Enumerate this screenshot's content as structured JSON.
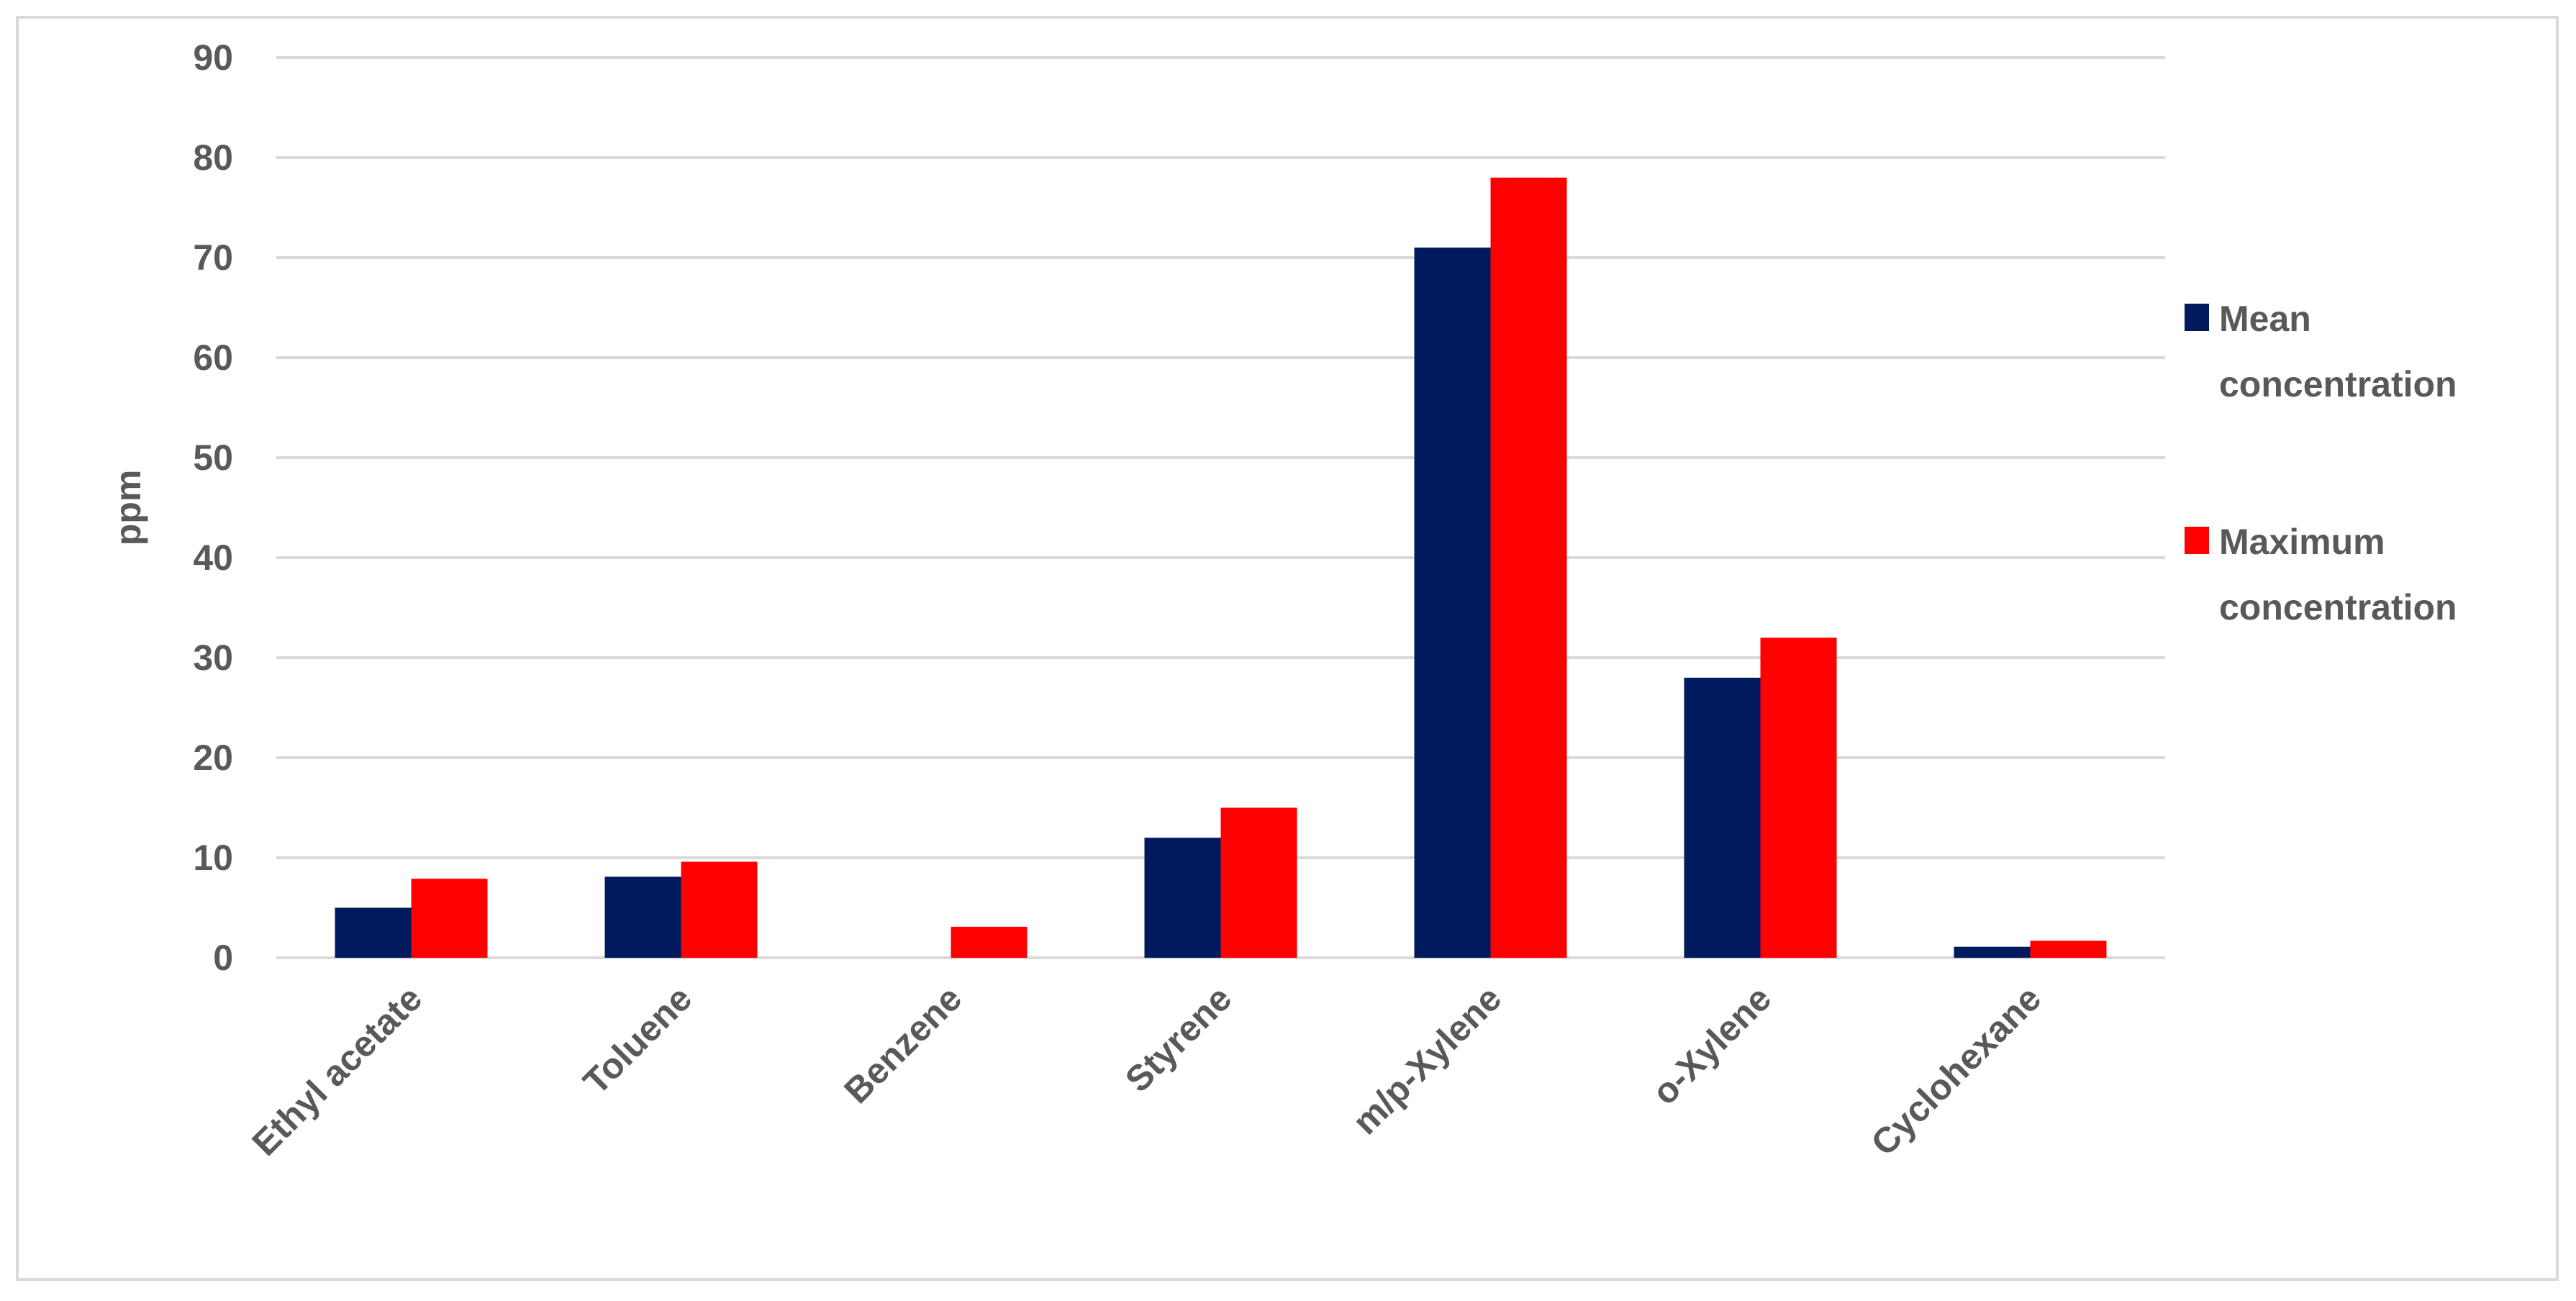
{
  "chart_data": {
    "type": "bar",
    "title": "",
    "xlabel": "",
    "ylabel": "ppm",
    "ylim": [
      0,
      90
    ],
    "yticks": [
      0,
      10,
      20,
      30,
      40,
      50,
      60,
      70,
      80,
      90
    ],
    "grid": true,
    "legend_position": "right",
    "categories": [
      "Ethyl acetate",
      "Toluene",
      "Benzene",
      "Styrene",
      "m/p-Xylene",
      "o-Xylene",
      "Cyclohexane"
    ],
    "series": [
      {
        "name": "Mean concentration",
        "legend_lines": [
          "Mean",
          "concentration"
        ],
        "color": "#001a5e",
        "values": [
          5.0,
          8.1,
          0,
          12,
          71,
          28,
          1.1
        ]
      },
      {
        "name": "Maximum concentration",
        "legend_lines": [
          "Maximum",
          "concentration"
        ],
        "color": "#ff0000",
        "values": [
          7.9,
          9.6,
          3.1,
          15,
          78,
          32,
          1.7
        ]
      }
    ]
  }
}
